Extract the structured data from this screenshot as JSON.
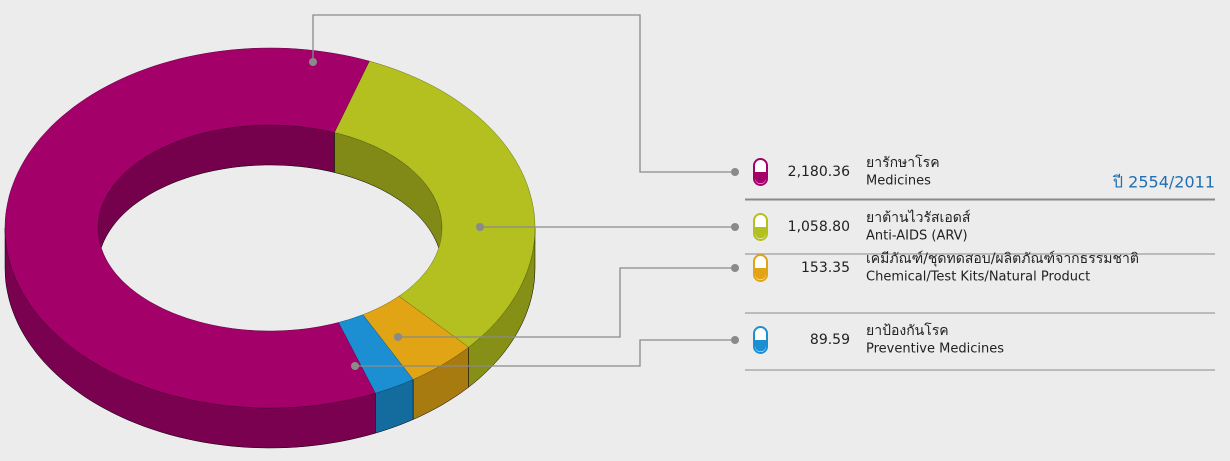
{
  "chart_data": {
    "type": "donut",
    "title": "ปี 2554/2011",
    "categories": [
      "Medicines",
      "Anti-AIDS (ARV)",
      "Chemical/Test Kits/Natural Product",
      "Preventive Medicines"
    ],
    "categories_th": [
      "ยารักษาโรค",
      "ยาต้านไวรัสเอดส์",
      "เคมีภัณฑ์/ชุดทดสอบ/ผลิตภัณฑ์จากธรรมชาติ",
      "ยาป้องกันโรค"
    ],
    "values": [
      2180.36,
      1058.8,
      153.35,
      89.59
    ],
    "value_labels": [
      "2,180.36",
      "1,058.80",
      "153.35",
      "89.59"
    ],
    "colors": [
      "#a3006a",
      "#b3c01f",
      "#e0a415",
      "#1b8fd2"
    ]
  }
}
